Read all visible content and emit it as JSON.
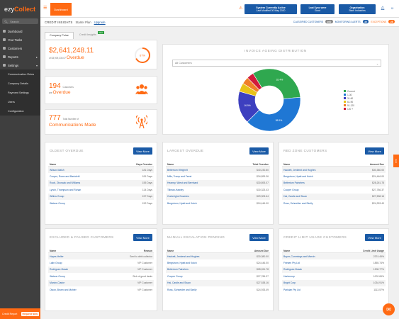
{
  "sidebar": {
    "brand": "ezy",
    "brand2": "Collect",
    "search_placeholder": "Search",
    "items": [
      {
        "label": "Dashboard"
      },
      {
        "label": "Your Tasks"
      },
      {
        "label": "Customers"
      },
      {
        "label": "Reports"
      },
      {
        "label": "Settings"
      }
    ],
    "subitems": [
      {
        "label": "Communication Rules"
      },
      {
        "label": "Company Details"
      },
      {
        "label": "Payment Settings"
      },
      {
        "label": "Users"
      },
      {
        "label": "Configuration"
      }
    ],
    "credit_label": "Credit Report",
    "credit_btn": "Request Now"
  },
  "topbar": {
    "dashboard_tab": "Dashboard",
    "status_line1": "System Currently Active",
    "status_line2": "Last Modified 30 May 2020",
    "sync_line1": "Last Sync were",
    "sync_line2": "Good",
    "org_line1": "Organisation",
    "org_line2": "Stark Industries"
  },
  "subheader": {
    "title": "CREDIT INSIGHTS",
    "plan": "Starter Plan",
    "upgrade": "Upgrade",
    "classified_label": "CLASSIFIED CUSTOMERS",
    "classified_count": "100",
    "monitoring_label": "MONITORING ALERTS",
    "monitoring_count": "30",
    "exceptions_label": "EXCEPTIONS",
    "exceptions_count": "28"
  },
  "tabs": {
    "company": "Company Pulse",
    "credit": "Credit Insights",
    "new_badge": "New"
  },
  "overdue": {
    "amount": "$2,641,248.11",
    "of_text": "of $3,909,330.07",
    "label": "Overdue",
    "percent": "67%",
    "percent_value": 0.67
  },
  "customers_overdue": {
    "count": "194",
    "small": "Customers",
    "are": "are",
    "label": "Overdue"
  },
  "comms": {
    "count": "777",
    "small": "Total Number of",
    "label": "Communications Made"
  },
  "ageing": {
    "title": "INVOICE AGEING DISTRIBUTION",
    "dropdown": "All Customers"
  },
  "chart_data": {
    "type": "pie",
    "title": "INVOICE AGEING DISTRIBUTION",
    "series": [
      {
        "name": "Current",
        "value": 32.4,
        "label": "32.4%",
        "color": "#2fa84f"
      },
      {
        "name": "1-30",
        "value": 38.9,
        "label": "38.9%",
        "color": "#1f77d4"
      },
      {
        "name": "31-60",
        "value": 16.9,
        "label": "16.9%",
        "color": "#3d3fbf"
      },
      {
        "name": "61-90",
        "value": 4.5,
        "label": "",
        "color": "#e8c21a"
      },
      {
        "name": "91-120",
        "value": 3.7,
        "label": "",
        "color": "#f07f2a"
      },
      {
        "name": "120 +",
        "value": 3.6,
        "label": "",
        "color": "#d11c3b"
      }
    ],
    "legend": "right"
  },
  "panels": {
    "view_more": "View More",
    "oldest": {
      "title": "OLDEST OVERDUE",
      "col1": "Name",
      "col2": "Days Overdue",
      "rows": [
        [
          "Wilson-Walsh",
          "181 Days"
        ],
        [
          "Cooper, Rowe and Bartoletti",
          "181 Days"
        ],
        [
          "Roob, Zboncak and Williams",
          "155 Days"
        ],
        [
          "Lynch, Thompson and Rohan",
          "114 Days"
        ],
        [
          "Willms Group",
          "157 Days"
        ],
        [
          "Watson Group",
          "152 Days"
        ]
      ]
    },
    "largest": {
      "title": "LARGEST OVERDUE",
      "col1": "Name",
      "col2": "Total Overdue",
      "rows": [
        [
          "Bettertum Weighelt",
          "$40,230.80"
        ],
        [
          "Mills, Trump and Feest",
          "$34,899.36"
        ],
        [
          "Heaney, Wiest and Bernhard",
          "$30,893.07"
        ],
        [
          "Tillman-Hawley",
          "$30,323.43"
        ],
        [
          "Corkerighe Downtes",
          "$29,905.64"
        ],
        [
          "Bergstrom, Hyatt and Kutch",
          "$24,446.00"
        ]
      ]
    },
    "redzone": {
      "title": "RED ZONE CUSTOMERS",
      "col1": "Name",
      "col2": "Amount Due",
      "rows": [
        [
          "Hackett, Jenkerst and Hughes",
          "$30,380.00"
        ],
        [
          "Bergstrom, Hyatt and Kutch",
          "$24,446.00"
        ],
        [
          "Bettertum Palnelers",
          "$28,261.78"
        ],
        [
          "Cooper Group",
          "$27,786.37"
        ],
        [
          "Hai, Castle and Stuan",
          "$27,538.16"
        ],
        [
          "Ross, Schneider and Skelly",
          "$24,933.49"
        ]
      ]
    },
    "excluded": {
      "title": "EXCLUDED & PAUSED CUSTOMERS",
      "col1": "Name",
      "col2": "Reason",
      "rows": [
        [
          "Hayes-Heller",
          "Sent to debt collector"
        ],
        [
          "Lalin Group",
          "VIP Customer"
        ],
        [
          "Rodriguez-Bosak",
          "VIP Customer"
        ],
        [
          "Watson Group",
          "Sick of good deals"
        ],
        [
          "Marvin-Clarke",
          "VIP Customer"
        ],
        [
          "Olson, Bruen and Mohler",
          "VIP Customer"
        ]
      ]
    },
    "manual": {
      "title": "MANUAL ESCALATION PENDING",
      "col1": "Name",
      "col2": "Amount Due",
      "rows": [
        [
          "Hackett, Jenkerst and Hughes",
          "$30,380.00"
        ],
        [
          "Bergstrom, Hyatt and Kutch",
          "$24,446.00"
        ],
        [
          "Bettertum Palnelers",
          "$28,261.78"
        ],
        [
          "Cooper Group",
          "$27,786.37"
        ],
        [
          "Hai, Castle and Stuan",
          "$27,538.16"
        ],
        [
          "Ross, Schneider and Skelly",
          "$24,933.49"
        ]
      ]
    },
    "creditlimit": {
      "title": "CREDIT LIMIT USAGE CUSTOMERS",
      "col1": "Name",
      "col2": "Credit Limit Usage",
      "rows": [
        [
          "Bayer, Cummings and Marvin",
          "2374.49%"
        ],
        [
          "Friesen Pty Ltd",
          "1855.74%"
        ],
        [
          "Rodriguez-Bosak",
          "1308.77%"
        ],
        [
          "Hartmmup",
          "1002.65%"
        ],
        [
          "Bright Corp",
          "1034.91%"
        ],
        [
          "Parisian Pty Ltd",
          "1113.57%"
        ]
      ]
    }
  },
  "feedback": "Help",
  "colors": {
    "accent": "#ff6a13",
    "primary": "#1a5aa6",
    "sidebar": "#3f3f3f"
  }
}
